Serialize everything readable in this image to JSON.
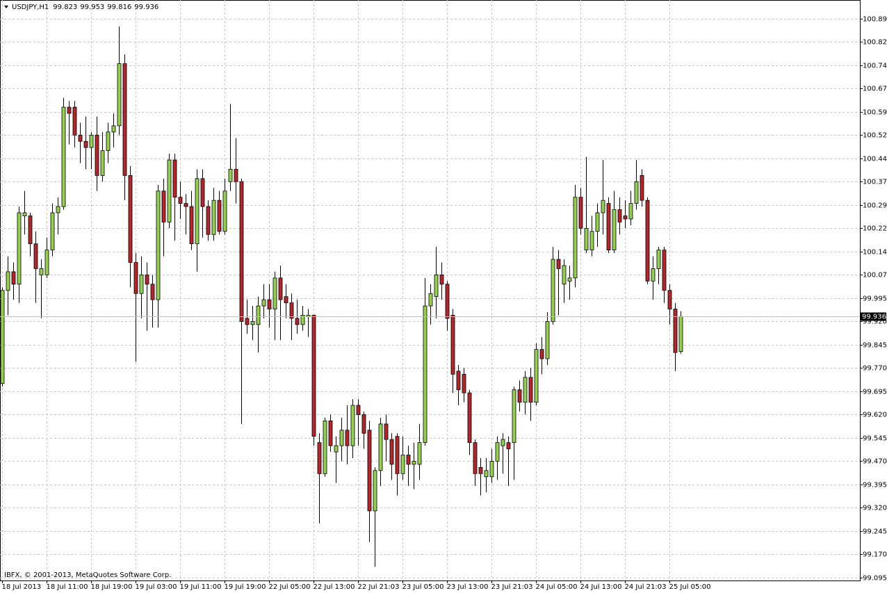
{
  "chart_data": {
    "type": "candlestick",
    "title": "USDJPY,H1",
    "copyright": "IBFX, © 2001-2013, MetaQuotes Software Corp.",
    "up_color": "#92d050",
    "down_color": "#b5262b",
    "wick_color": "#000000",
    "grid": true,
    "categories": [
      "18 Jul 2013",
      null,
      null,
      null,
      null,
      null,
      null,
      null,
      "18 Jul 11:00",
      null,
      null,
      null,
      null,
      null,
      null,
      null,
      "18 Jul 19:00",
      null,
      null,
      null,
      null,
      null,
      null,
      null,
      "19 Jul 03:00",
      null,
      null,
      null,
      null,
      null,
      null,
      null,
      "19 Jul 11:00",
      null,
      null,
      null,
      null,
      null,
      null,
      null,
      "19 Jul 19:00",
      null,
      null,
      null,
      null,
      null,
      null,
      null,
      "22 Jul 05:00",
      null,
      null,
      null,
      null,
      null,
      null,
      null,
      "22 Jul 13:00",
      null,
      null,
      null,
      null,
      null,
      null,
      null,
      "22 Jul 21:03",
      null,
      null,
      null,
      null,
      null,
      null,
      null,
      "23 Jul 05:00",
      null,
      null,
      null,
      null,
      null,
      null,
      null,
      "23 Jul 13:00",
      null,
      null,
      null,
      null,
      null,
      null,
      null,
      "23 Jul 21:03",
      null,
      null,
      null,
      null,
      null,
      null,
      null,
      "24 Jul 05:00",
      null,
      null,
      null,
      null,
      null,
      null,
      null,
      "24 Jul 13:00",
      null,
      null,
      null,
      null,
      null,
      null,
      null,
      "24 Jul 21:03",
      null,
      null,
      null,
      null,
      null,
      null,
      null,
      "25 Jul 05:00",
      null,
      null
    ],
    "open": [
      99.72,
      100.02,
      100.08,
      100.04,
      100.26,
      100.26,
      100.17,
      100.07,
      100.07,
      100.15,
      100.27,
      100.29,
      100.61,
      100.61,
      100.52,
      100.5,
      100.48,
      100.52,
      100.39,
      100.47,
      100.53,
      100.55,
      100.75,
      100.39,
      100.11,
      100.01,
      100.07,
      100.04,
      99.99,
      100.34,
      100.24,
      100.44,
      100.32,
      100.3,
      100.29,
      100.17,
      100.38,
      100.29,
      100.2,
      100.31,
      100.21,
      100.37,
      100.41,
      100.37,
      99.93,
      99.91,
      99.91,
      99.97,
      99.99,
      99.96,
      100.06,
      100.0,
      99.98,
      99.93,
      99.91,
      99.935,
      99.94,
      99.53,
      99.43,
      99.6,
      99.5,
      99.52,
      99.57,
      99.52,
      99.65,
      99.62,
      99.57,
      99.31,
      99.44,
      99.59,
      99.54,
      99.55,
      99.43,
      99.49,
      99.46,
      99.46,
      99.53,
      99.97,
      100.0,
      100.07,
      100.04,
      99.94,
      99.76,
      99.75,
      99.69,
      99.53,
      99.45,
      99.42,
      99.42,
      99.47,
      99.52,
      99.53,
      99.53,
      99.7,
      99.66,
      99.74,
      99.66,
      99.83,
      99.8,
      99.92,
      100.12,
      100.04,
      100.05,
      100.06,
      100.32,
      100.15,
      100.15,
      100.21,
      100.27,
      100.3,
      100.15,
      100.28,
      100.26,
      100.25,
      100.3,
      100.39,
      100.31,
      100.05,
      100.09,
      100.15,
      100.02,
      99.96,
      99.823
    ],
    "high": [
      100.03,
      100.13,
      100.11,
      100.29,
      100.34,
      100.27,
      100.21,
      100.12,
      100.19,
      100.3,
      100.32,
      100.64,
      100.63,
      100.63,
      100.56,
      100.58,
      100.53,
      100.58,
      100.53,
      100.56,
      100.59,
      100.87,
      100.78,
      100.42,
      100.14,
      100.13,
      100.11,
      100.07,
      100.36,
      100.38,
      100.46,
      100.46,
      100.37,
      100.33,
      100.34,
      100.41,
      100.41,
      100.31,
      100.35,
      100.34,
      100.38,
      100.62,
      100.51,
      100.38,
      99.99,
      99.97,
      100.0,
      100.04,
      100.04,
      100.08,
      100.1,
      100.04,
      100.01,
      99.99,
      99.97,
      99.96,
      99.94,
      99.56,
      99.61,
      99.62,
      99.55,
      99.61,
      99.65,
      99.67,
      99.67,
      99.63,
      99.6,
      99.45,
      99.61,
      99.62,
      99.56,
      99.56,
      99.55,
      99.52,
      99.53,
      99.59,
      100.06,
      100.04,
      100.16,
      100.11,
      100.05,
      99.96,
      99.78,
      99.77,
      99.7,
      99.54,
      99.48,
      99.48,
      99.51,
      99.55,
      99.56,
      99.55,
      99.71,
      99.73,
      99.76,
      99.77,
      99.85,
      99.87,
      99.95,
      100.16,
      100.15,
      100.12,
      100.1,
      100.36,
      100.35,
      100.45,
      100.26,
      100.3,
      100.44,
      100.32,
      100.34,
      100.32,
      100.31,
      100.34,
      100.44,
      100.41,
      100.32,
      100.13,
      100.16,
      100.16,
      100.04,
      99.98,
      99.953
    ],
    "low": [
      99.71,
      99.94,
      99.99,
      99.98,
      100.2,
      100.13,
      99.98,
      99.93,
      100.06,
      100.13,
      100.2,
      100.28,
      100.49,
      100.48,
      100.43,
      100.41,
      100.41,
      100.34,
      100.37,
      100.43,
      100.48,
      100.52,
      100.31,
      100.03,
      99.79,
      99.93,
      99.89,
      99.9,
      99.9,
      100.13,
      100.22,
      100.18,
      100.25,
      100.2,
      100.15,
      100.08,
      100.19,
      100.18,
      100.18,
      100.2,
      100.2,
      100.34,
      100.3,
      99.59,
      99.88,
      99.86,
      99.82,
      99.93,
      99.9,
      99.86,
      99.86,
      99.93,
      99.86,
      99.88,
      99.89,
      99.87,
      99.52,
      99.27,
      99.42,
      99.5,
      99.4,
      99.47,
      99.46,
      99.48,
      99.52,
      99.51,
      99.21,
      99.13,
      99.39,
      99.47,
      99.41,
      99.36,
      99.41,
      99.39,
      99.38,
      99.41,
      99.52,
      99.91,
      99.93,
      99.99,
      99.89,
      99.69,
      99.65,
      99.66,
      99.49,
      99.39,
      99.36,
      99.37,
      99.4,
      99.41,
      99.43,
      99.39,
      99.41,
      99.63,
      99.62,
      99.6,
      99.65,
      99.75,
      99.78,
      99.91,
      99.94,
      99.98,
      99.99,
      100.03,
      100.2,
      100.14,
      100.13,
      100.16,
      100.2,
      100.14,
      100.14,
      100.2,
      100.22,
      100.23,
      100.28,
      100.29,
      100.04,
      99.99,
      100.04,
      99.98,
      99.91,
      99.76,
      99.816
    ],
    "close": [
      100.02,
      100.08,
      100.04,
      100.27,
      100.27,
      100.17,
      100.09,
      100.09,
      100.15,
      100.27,
      100.29,
      100.61,
      100.59,
      100.52,
      100.5,
      100.48,
      100.52,
      100.39,
      100.47,
      100.53,
      100.55,
      100.75,
      100.39,
      100.11,
      100.01,
      100.07,
      100.04,
      99.99,
      100.34,
      100.24,
      100.44,
      100.32,
      100.3,
      100.29,
      100.17,
      100.38,
      100.29,
      100.2,
      100.31,
      100.21,
      100.34,
      100.41,
      100.37,
      99.92,
      99.91,
      99.92,
      99.97,
      99.99,
      99.96,
      100.06,
      99.99,
      99.98,
      99.93,
      99.91,
      99.94,
      99.94,
      99.55,
      99.43,
      99.6,
      99.52,
      99.52,
      99.57,
      99.52,
      99.65,
      99.62,
      99.56,
      99.31,
      99.44,
      99.59,
      99.54,
      99.46,
      99.43,
      99.49,
      99.46,
      99.47,
      99.53,
      99.97,
      100.01,
      100.07,
      100.04,
      99.93,
      99.75,
      99.7,
      99.69,
      99.53,
      99.43,
      99.43,
      99.44,
      99.47,
      99.53,
      99.54,
      99.51,
      99.7,
      99.66,
      99.74,
      99.66,
      99.83,
      99.8,
      99.92,
      100.12,
      100.09,
      100.1,
      100.06,
      100.32,
      100.22,
      100.22,
      100.21,
      100.27,
      100.31,
      100.15,
      100.28,
      100.24,
      100.25,
      100.3,
      100.37,
      100.31,
      100.05,
      100.09,
      100.15,
      100.02,
      99.96,
      99.82,
      99.936
    ],
    "ylim": [
      99.086,
      100.955
    ],
    "yticks": [
      100.895,
      {
        "value": 100.82,
        "label": "100.820"
      },
      100.745,
      {
        "value": 100.67,
        "label": "100.670"
      },
      100.595,
      {
        "value": 100.52,
        "label": "100.520"
      },
      100.445,
      {
        "value": 100.37,
        "label": "100.370"
      },
      100.295,
      {
        "value": 100.22,
        "label": "100.220"
      },
      100.145,
      {
        "value": 100.07,
        "label": "100.070"
      },
      99.995,
      {
        "value": 99.92,
        "label": "99.920"
      },
      99.845,
      {
        "value": 99.77,
        "label": "99.770"
      },
      99.695,
      {
        "value": 99.62,
        "label": "99.620"
      },
      99.545,
      {
        "value": 99.47,
        "label": "99.470"
      },
      99.395,
      {
        "value": 99.32,
        "label": "99.320"
      },
      99.245,
      {
        "value": 99.17,
        "label": "99.170"
      },
      99.095
    ]
  }
}
